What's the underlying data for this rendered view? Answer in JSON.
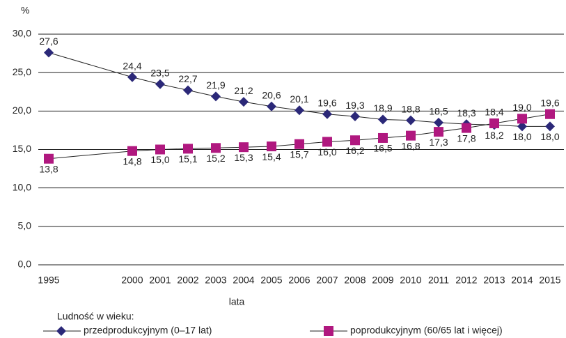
{
  "chart_data": {
    "type": "line",
    "y_label": "%",
    "x_label": "lata",
    "legend_title": "Ludność w wieku:",
    "categories": [
      "1995",
      "2000",
      "2001",
      "2002",
      "2003",
      "2004",
      "2005",
      "2006",
      "2007",
      "2008",
      "2009",
      "2010",
      "2011",
      "2012",
      "2013",
      "2014",
      "2015"
    ],
    "series": [
      {
        "name": "przedprodukcyjnym (0–17 lat)",
        "color": "#2b2878",
        "marker": "diamond",
        "values": [
          27.6,
          24.4,
          23.5,
          22.7,
          21.9,
          21.2,
          20.6,
          20.1,
          19.6,
          19.3,
          18.9,
          18.8,
          18.5,
          18.3,
          18.2,
          18.0,
          18.0
        ],
        "value_labels": [
          "27,6",
          "24,4",
          "23,5",
          "22,7",
          "21,9",
          "21,2",
          "20,6",
          "20,1",
          "19,6",
          "19,3",
          "18,9",
          "18,8",
          "18,5",
          "18,3",
          "18,2",
          "18,0",
          "18,0"
        ]
      },
      {
        "name": "poprodukcyjnym (60/65 lat i więcej)",
        "color": "#b0187f",
        "marker": "square",
        "values": [
          13.8,
          14.8,
          15.0,
          15.1,
          15.2,
          15.3,
          15.4,
          15.7,
          16.0,
          16.2,
          16.5,
          16.8,
          17.3,
          17.8,
          18.4,
          19.0,
          19.6
        ],
        "value_labels": [
          "13,8",
          "14,8",
          "15,0",
          "15,1",
          "15,2",
          "15,3",
          "15,4",
          "15,7",
          "16,0",
          "16,2",
          "16,5",
          "16,8",
          "17,3",
          "17,8",
          "18,4",
          "19,0",
          "19,6"
        ]
      }
    ],
    "ylim": [
      0,
      30
    ],
    "yticks": [
      {
        "value": 0,
        "label": "0,0"
      },
      {
        "value": 5,
        "label": "5,0"
      },
      {
        "value": 10,
        "label": "10,0"
      },
      {
        "value": 15,
        "label": "15,0"
      },
      {
        "value": 20,
        "label": "20,0"
      },
      {
        "value": 25,
        "label": "25,0"
      },
      {
        "value": 30,
        "label": "30,0"
      }
    ],
    "grid": true
  }
}
